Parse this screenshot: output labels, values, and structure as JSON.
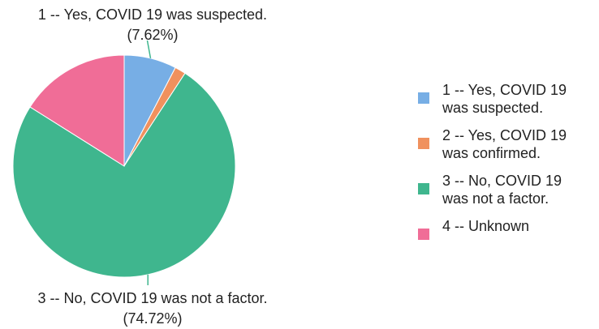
{
  "chart_data": {
    "type": "pie",
    "categories": [
      "1 -- Yes, COVID 19 was suspected.",
      "2 -- Yes, COVID 19 was confirmed.",
      "3 -- No, COVID 19 was not a factor.",
      "4 -- Unknown"
    ],
    "values": [
      7.62,
      1.6,
      74.72,
      16.06
    ],
    "value_labels": [
      "(7.62%)",
      null,
      "(74.72%)",
      null
    ],
    "colors": [
      "#77aee5",
      "#f0915e",
      "#3fb68e",
      "#f06d97"
    ],
    "legend": "right"
  }
}
